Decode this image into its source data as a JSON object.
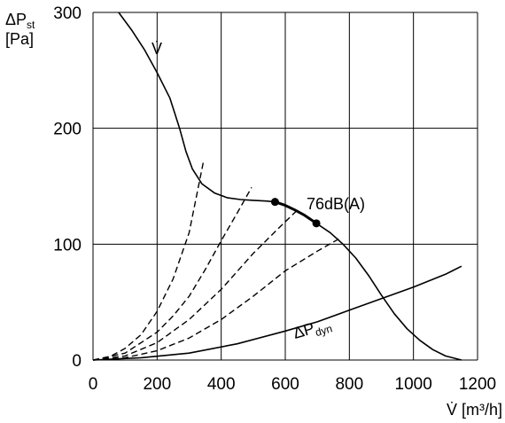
{
  "chart_data": {
    "type": "line",
    "xlabel": "V̇ [m³/h]",
    "ylabel_main": "ΔP",
    "ylabel_sub": "st",
    "ylabel_unit": "[Pa]",
    "xlim": [
      0,
      1200
    ],
    "ylim": [
      0,
      300
    ],
    "x_ticks": [
      0,
      200,
      400,
      600,
      800,
      1000,
      1200
    ],
    "y_ticks": [
      0,
      100,
      200,
      300
    ],
    "grid": true,
    "series": [
      {
        "style": "solid",
        "points": [
          [
            80,
            300
          ],
          [
            120,
            285
          ],
          [
            160,
            268
          ],
          [
            200,
            248
          ],
          [
            240,
            226
          ],
          [
            270,
            200
          ],
          [
            290,
            180
          ],
          [
            310,
            165
          ],
          [
            340,
            152
          ],
          [
            380,
            144
          ],
          [
            420,
            140
          ],
          [
            460,
            138.5
          ],
          [
            500,
            137.8
          ],
          [
            540,
            137.2
          ],
          [
            568,
            136.5
          ]
        ]
      },
      {
        "style": "bold",
        "points": [
          [
            568,
            136.5
          ],
          [
            600,
            133.5
          ],
          [
            630,
            129.5
          ],
          [
            660,
            125
          ],
          [
            697,
            118
          ]
        ]
      },
      {
        "style": "solid",
        "points": [
          [
            697,
            118
          ],
          [
            740,
            110
          ],
          [
            780,
            100
          ],
          [
            820,
            88
          ],
          [
            860,
            73
          ],
          [
            900,
            56
          ],
          [
            940,
            40
          ],
          [
            980,
            27
          ],
          [
            1020,
            17
          ],
          [
            1060,
            9
          ],
          [
            1100,
            3.5
          ],
          [
            1150,
            0
          ]
        ]
      },
      {
        "style": "dashed",
        "points": [
          [
            0,
            0
          ],
          [
            50,
            2.5
          ],
          [
            100,
            10
          ],
          [
            150,
            22
          ],
          [
            200,
            42
          ],
          [
            250,
            70
          ],
          [
            300,
            110
          ],
          [
            345,
            172
          ]
        ]
      },
      {
        "style": "dashed",
        "points": [
          [
            0,
            0
          ],
          [
            100,
            6
          ],
          [
            200,
            24
          ],
          [
            250,
            38
          ],
          [
            300,
            55
          ],
          [
            350,
            78
          ],
          [
            400,
            103
          ],
          [
            450,
            127
          ],
          [
            495,
            149
          ]
        ]
      },
      {
        "style": "dashed",
        "points": [
          [
            0,
            0
          ],
          [
            100,
            3.5
          ],
          [
            200,
            15
          ],
          [
            300,
            35
          ],
          [
            400,
            61
          ],
          [
            500,
            92
          ],
          [
            580,
            114
          ],
          [
            640,
            130
          ]
        ]
      },
      {
        "style": "dashed",
        "points": [
          [
            0,
            0
          ],
          [
            100,
            2
          ],
          [
            200,
            8
          ],
          [
            300,
            19
          ],
          [
            400,
            35
          ],
          [
            500,
            55
          ],
          [
            600,
            77
          ],
          [
            700,
            94
          ],
          [
            770,
            105
          ]
        ]
      },
      {
        "style": "solid",
        "points": [
          [
            0,
            0
          ],
          [
            150,
            2
          ],
          [
            300,
            6
          ],
          [
            450,
            14
          ],
          [
            600,
            25
          ],
          [
            700,
            33
          ],
          [
            800,
            43
          ],
          [
            900,
            53
          ],
          [
            1000,
            63
          ],
          [
            1100,
            74
          ],
          [
            1150,
            81
          ]
        ]
      }
    ],
    "markers": [
      [
        568,
        136.5
      ],
      [
        697,
        118
      ]
    ],
    "annotations": {
      "v_dot_curve": "V̇",
      "sound_level": "76dB(A)",
      "dyn_main": "ΔP",
      "dyn_sub": "dyn"
    }
  }
}
